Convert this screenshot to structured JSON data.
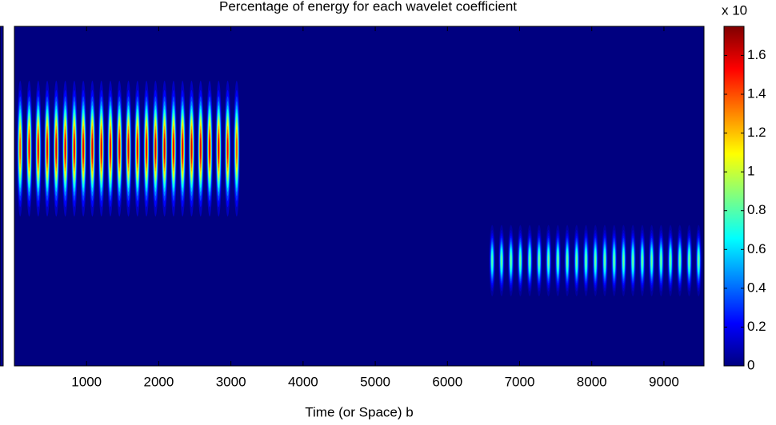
{
  "chart_data": {
    "type": "scalogram",
    "title": "Percentage of energy for each wavelet coefficient",
    "xlabel": "Time (or Space) b",
    "xlim": [
      0,
      9555
    ],
    "xticks": [
      1000,
      2000,
      3000,
      4000,
      5000,
      6000,
      7000,
      8000,
      9000
    ],
    "ylim": [
      0,
      100
    ],
    "clim": [
      0,
      1.75
    ],
    "cticks": [
      0,
      0.2,
      0.4,
      0.6,
      0.8,
      1,
      1.2,
      1.4,
      1.6
    ],
    "cscale_label": "x 10",
    "colormap": "jet",
    "bursts": [
      {
        "y": 64,
        "half_height": 20,
        "half_width": 45,
        "x": [
          80,
          205,
          330,
          455,
          580,
          705,
          830,
          955,
          1080,
          1205,
          1330,
          1455,
          1580,
          1705,
          1830,
          1955,
          2080,
          2205,
          2330,
          2455,
          2580,
          2705,
          2830,
          2955,
          3080
        ],
        "values": [
          1.5,
          1.65,
          1.7,
          1.7,
          1.7,
          1.7,
          1.7,
          1.7,
          1.7,
          1.7,
          1.7,
          1.7,
          1.7,
          1.7,
          1.7,
          1.7,
          1.7,
          1.7,
          1.7,
          1.7,
          1.7,
          1.7,
          1.7,
          1.65,
          1.5
        ]
      },
      {
        "y": 31,
        "half_height": 10.5,
        "half_width": 42,
        "x": [
          6620,
          6750,
          6880,
          7010,
          7140,
          7270,
          7400,
          7530,
          7660,
          7790,
          7920,
          8050,
          8180,
          8310,
          8440,
          8570,
          8700,
          8830,
          8960,
          9090,
          9220,
          9350,
          9480
        ],
        "values": [
          0.85,
          0.9,
          0.9,
          0.9,
          0.9,
          0.9,
          0.9,
          0.9,
          0.9,
          0.9,
          0.9,
          0.9,
          0.9,
          0.9,
          0.9,
          0.9,
          0.9,
          0.9,
          0.9,
          0.9,
          0.9,
          0.9,
          0.9
        ]
      }
    ]
  }
}
